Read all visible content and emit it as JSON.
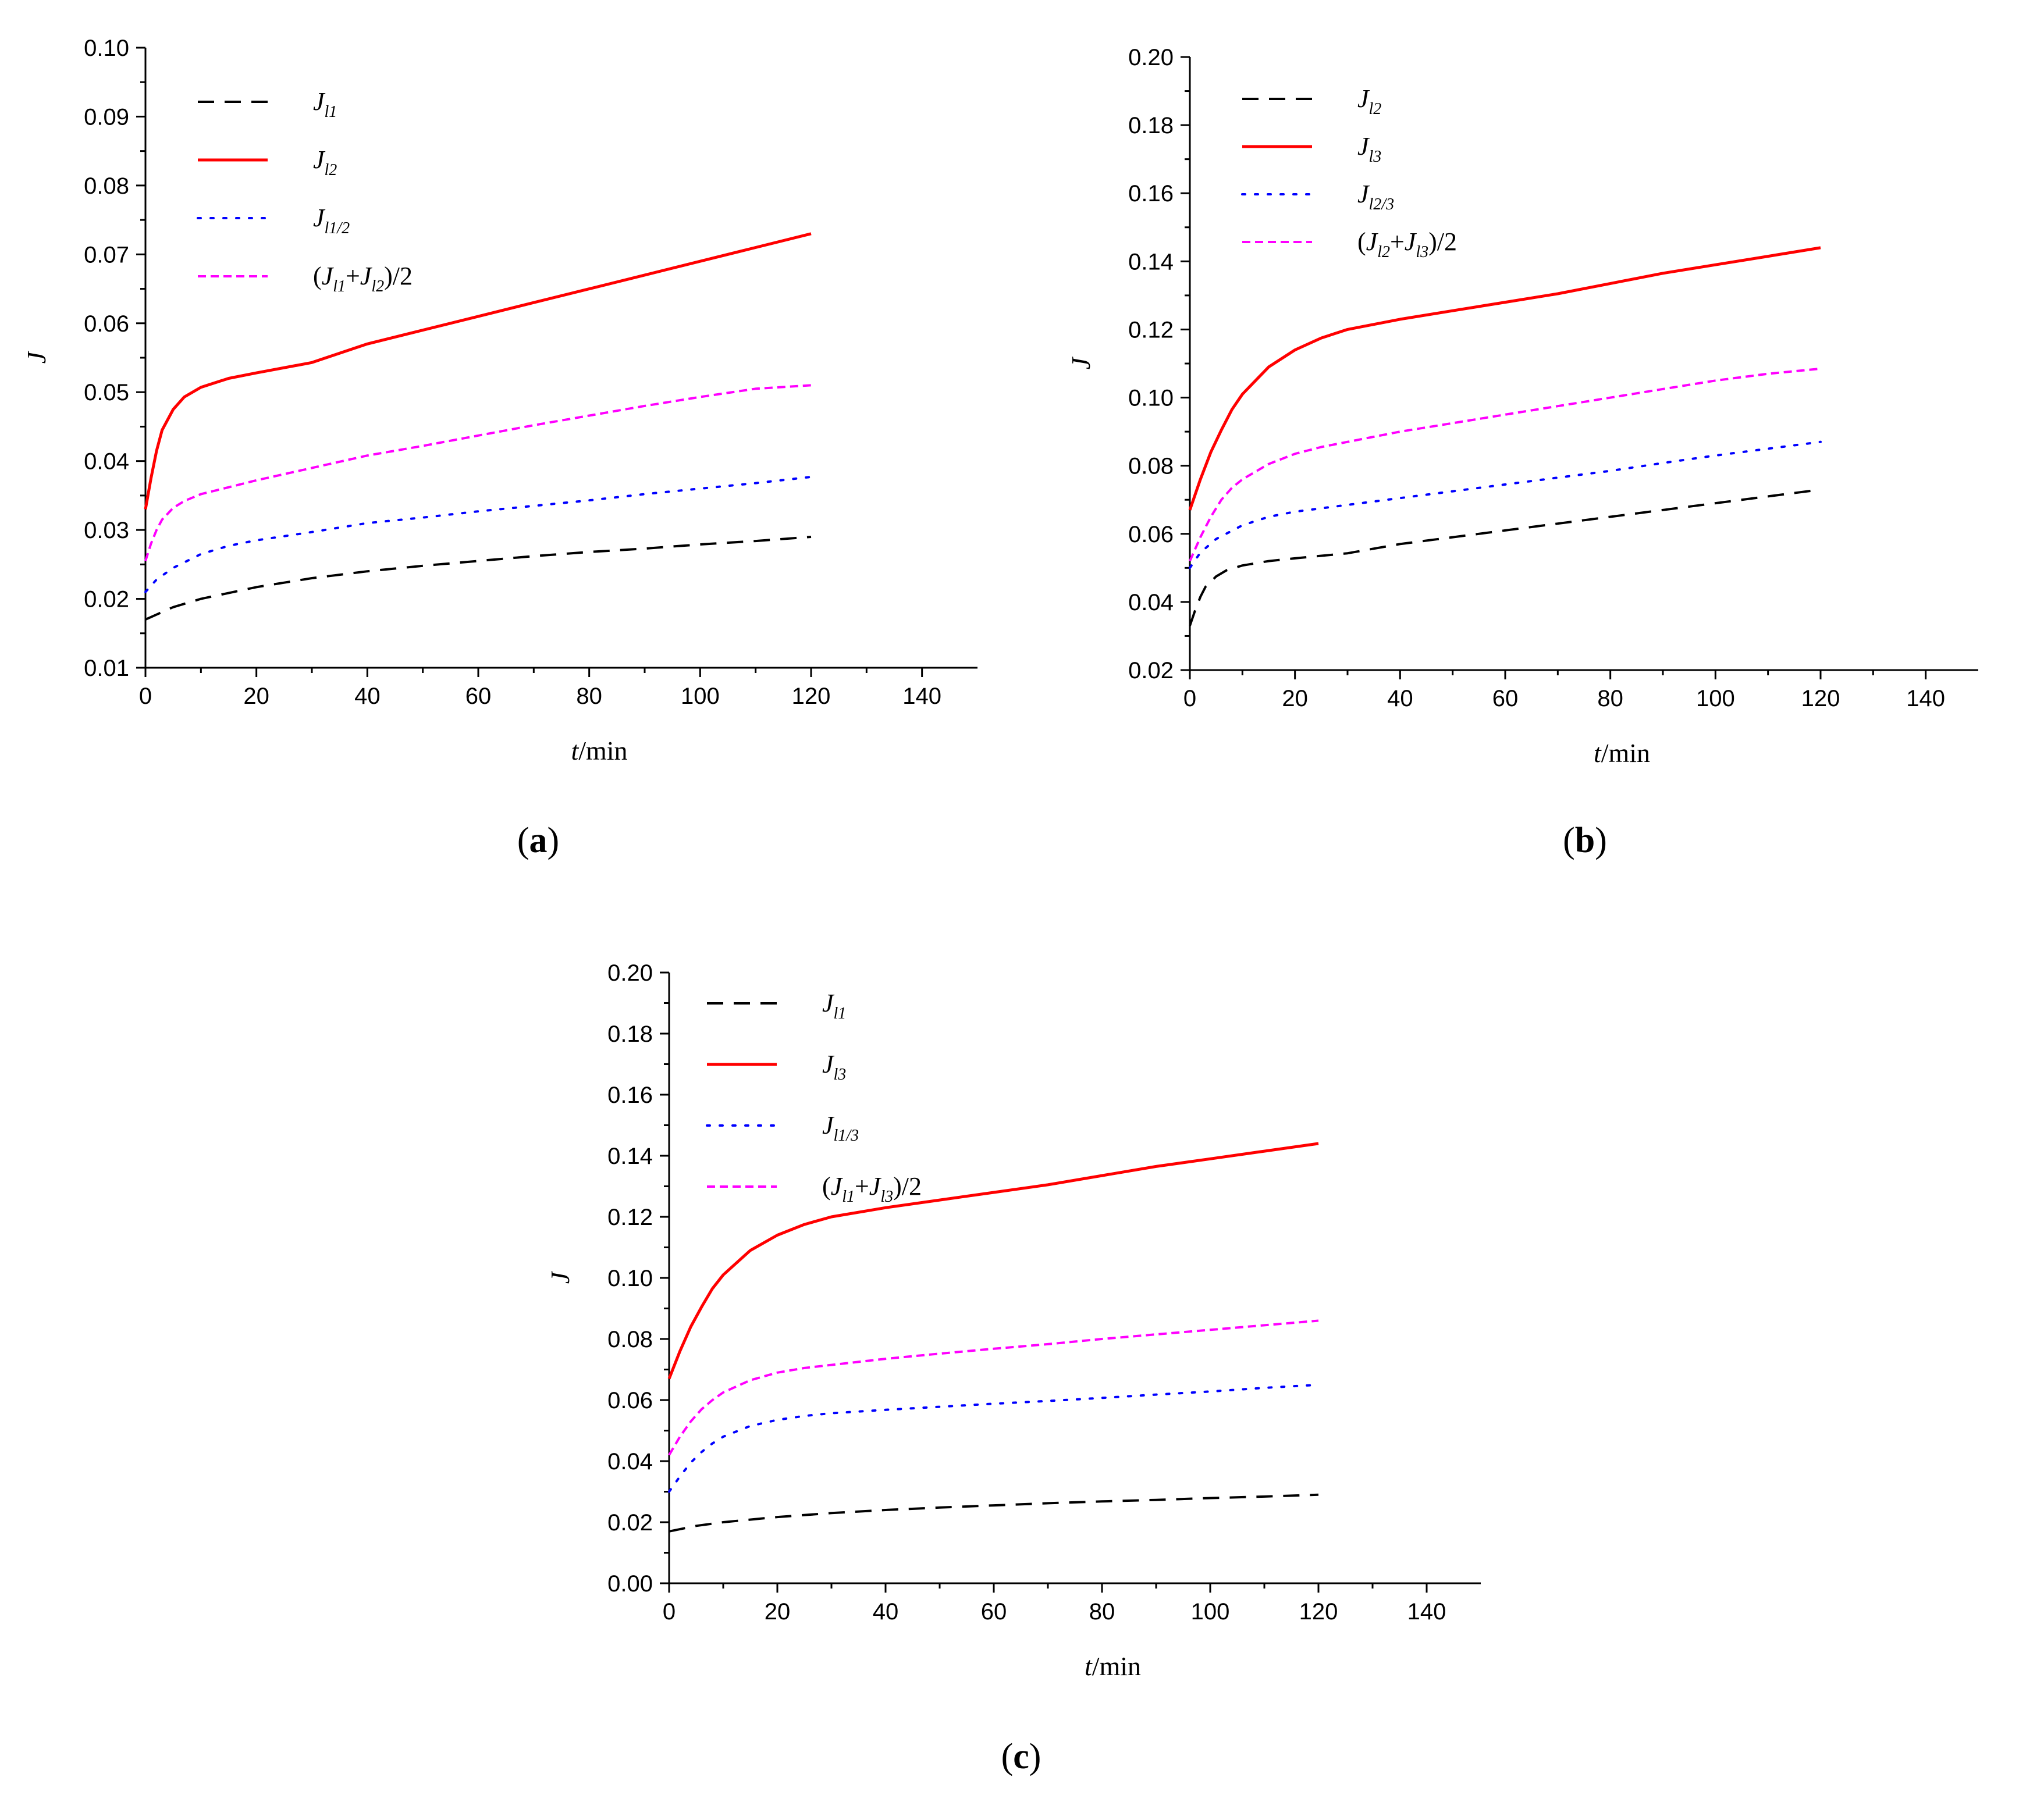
{
  "chart_data": [
    {
      "type": "line",
      "panel": "a",
      "panel_label": "(a)",
      "xlabel": "t/min",
      "xlabel_var": "t",
      "xlabel_unit": "/min",
      "ylabel": "J",
      "xlim": [
        0,
        150
      ],
      "ylim": [
        0.01,
        0.1
      ],
      "xticks": [
        0,
        20,
        40,
        60,
        80,
        100,
        120,
        140
      ],
      "xtick_labels": [
        "0",
        "20",
        "40",
        "60",
        "80",
        "100",
        "120",
        "140"
      ],
      "yticks": [
        0.01,
        0.02,
        0.03,
        0.04,
        0.05,
        0.06,
        0.07,
        0.08,
        0.09,
        0.1
      ],
      "ytick_labels": [
        "0.01",
        "0.02",
        "0.03",
        "0.04",
        "0.05",
        "0.06",
        "0.07",
        "0.08",
        "0.09",
        "0.10"
      ],
      "series": [
        {
          "name": "J_l1",
          "legend": [
            {
              "t": "J",
              "i": true
            },
            {
              "t": "l1",
              "sub": true,
              "i": true
            }
          ],
          "color": "#000000",
          "style": "dash",
          "x": [
            0,
            5,
            10,
            20,
            30,
            40,
            50,
            60,
            70,
            80,
            90,
            100,
            110,
            120
          ],
          "y": [
            0.017,
            0.0188,
            0.02,
            0.0217,
            0.023,
            0.024,
            0.0248,
            0.0255,
            0.0262,
            0.0268,
            0.0273,
            0.0279,
            0.0284,
            0.029
          ]
        },
        {
          "name": "J_l2",
          "legend": [
            {
              "t": "J",
              "i": true
            },
            {
              "t": "l2",
              "sub": true,
              "i": true
            }
          ],
          "color": "#ff0000",
          "style": "solid",
          "x": [
            0,
            1,
            2,
            3,
            5,
            7,
            10,
            15,
            20,
            30,
            40,
            50,
            60,
            70,
            80,
            90,
            100,
            110,
            120
          ],
          "y": [
            0.033,
            0.0375,
            0.0415,
            0.0445,
            0.0475,
            0.0493,
            0.0507,
            0.052,
            0.0528,
            0.0543,
            0.057,
            0.059,
            0.061,
            0.063,
            0.065,
            0.067,
            0.069,
            0.071,
            0.073
          ]
        },
        {
          "name": "J_l1/2",
          "legend": [
            {
              "t": "J",
              "i": true
            },
            {
              "t": "l1/2",
              "sub": true,
              "i": true
            }
          ],
          "color": "#0000ff",
          "style": "dot",
          "x": [
            0,
            2,
            5,
            10,
            15,
            20,
            30,
            40,
            50,
            60,
            70,
            80,
            90,
            100,
            110,
            120
          ],
          "y": [
            0.021,
            0.0228,
            0.0245,
            0.0265,
            0.0277,
            0.0285,
            0.0297,
            0.031,
            0.0318,
            0.0327,
            0.0335,
            0.0343,
            0.0352,
            0.036,
            0.0368,
            0.0377
          ]
        },
        {
          "name": "(J_l1+J_l2)/2",
          "legend": [
            {
              "t": "("
            },
            {
              "t": "J",
              "i": true
            },
            {
              "t": "l1",
              "sub": true,
              "i": true
            },
            {
              "t": "+"
            },
            {
              "t": "J",
              "i": true
            },
            {
              "t": "l2",
              "sub": true,
              "i": true
            },
            {
              "t": ")/2"
            }
          ],
          "color": "#ff00ff",
          "style": "dash-small",
          "x": [
            0,
            1,
            2,
            3,
            5,
            7,
            10,
            15,
            20,
            30,
            40,
            50,
            60,
            70,
            80,
            90,
            100,
            110,
            120
          ],
          "y": [
            0.0255,
            0.028,
            0.03,
            0.0315,
            0.0332,
            0.0342,
            0.0352,
            0.0362,
            0.0372,
            0.039,
            0.0408,
            0.0422,
            0.0437,
            0.0452,
            0.0466,
            0.048,
            0.0493,
            0.0505,
            0.051
          ]
        }
      ]
    },
    {
      "type": "line",
      "panel": "b",
      "panel_label": "(b)",
      "xlabel": "t/min",
      "xlabel_var": "t",
      "xlabel_unit": "/min",
      "ylabel": "J",
      "xlim": [
        0,
        150
      ],
      "ylim": [
        0.02,
        0.2
      ],
      "xticks": [
        0,
        20,
        40,
        60,
        80,
        100,
        120,
        140
      ],
      "xtick_labels": [
        "0",
        "20",
        "40",
        "60",
        "80",
        "100",
        "120",
        "140"
      ],
      "yticks": [
        0.02,
        0.04,
        0.06,
        0.08,
        0.1,
        0.12,
        0.14,
        0.16,
        0.18,
        0.2
      ],
      "ytick_labels": [
        "0.02",
        "0.04",
        "0.06",
        "0.08",
        "0.10",
        "0.12",
        "0.14",
        "0.16",
        "0.18",
        "0.20"
      ],
      "series": [
        {
          "name": "J_l2",
          "legend": [
            {
              "t": "J",
              "i": true
            },
            {
              "t": "l2",
              "sub": true,
              "i": true
            }
          ],
          "color": "#000000",
          "style": "dash",
          "x": [
            0,
            1,
            2,
            3,
            5,
            7,
            10,
            15,
            20,
            30,
            40,
            50,
            60,
            70,
            80,
            90,
            100,
            110,
            120
          ],
          "y": [
            0.033,
            0.0375,
            0.0415,
            0.0445,
            0.0475,
            0.0493,
            0.0507,
            0.052,
            0.0528,
            0.0543,
            0.057,
            0.059,
            0.061,
            0.063,
            0.065,
            0.067,
            0.069,
            0.071,
            0.073
          ]
        },
        {
          "name": "J_l3",
          "legend": [
            {
              "t": "J",
              "i": true
            },
            {
              "t": "l3",
              "sub": true,
              "i": true
            }
          ],
          "color": "#ff0000",
          "style": "solid",
          "x": [
            0,
            2,
            4,
            6,
            8,
            10,
            15,
            20,
            25,
            30,
            40,
            50,
            60,
            70,
            80,
            90,
            100,
            110,
            120
          ],
          "y": [
            0.067,
            0.076,
            0.084,
            0.0905,
            0.0965,
            0.101,
            0.109,
            0.114,
            0.1175,
            0.12,
            0.123,
            0.1255,
            0.128,
            0.1305,
            0.1335,
            0.1365,
            0.139,
            0.1415,
            0.144
          ]
        },
        {
          "name": "J_l2/3",
          "legend": [
            {
              "t": "J",
              "i": true
            },
            {
              "t": "l2/3",
              "sub": true,
              "i": true
            }
          ],
          "color": "#0000ff",
          "style": "dot",
          "x": [
            0,
            2,
            5,
            10,
            15,
            20,
            30,
            40,
            50,
            60,
            70,
            80,
            90,
            100,
            110,
            120
          ],
          "y": [
            0.05,
            0.0545,
            0.0585,
            0.0625,
            0.065,
            0.0665,
            0.0685,
            0.0705,
            0.0725,
            0.0745,
            0.0765,
            0.0785,
            0.0808,
            0.083,
            0.085,
            0.087
          ]
        },
        {
          "name": "(J_l2+J_l3)/2",
          "legend": [
            {
              "t": "("
            },
            {
              "t": "J",
              "i": true
            },
            {
              "t": "l2",
              "sub": true,
              "i": true
            },
            {
              "t": "+"
            },
            {
              "t": "J",
              "i": true
            },
            {
              "t": "l3",
              "sub": true,
              "i": true
            },
            {
              "t": ")/2"
            }
          ],
          "color": "#ff00ff",
          "style": "dash-small",
          "x": [
            0,
            2,
            4,
            6,
            8,
            10,
            15,
            20,
            25,
            30,
            40,
            50,
            60,
            70,
            80,
            90,
            100,
            110,
            120
          ],
          "y": [
            0.052,
            0.059,
            0.065,
            0.07,
            0.0735,
            0.076,
            0.0805,
            0.0835,
            0.0855,
            0.087,
            0.09,
            0.0925,
            0.095,
            0.0975,
            0.1,
            0.1025,
            0.105,
            0.107,
            0.1085
          ]
        }
      ]
    },
    {
      "type": "line",
      "panel": "c",
      "panel_label": "(c)",
      "xlabel": "t/min",
      "xlabel_var": "t",
      "xlabel_unit": "/min",
      "ylabel": "J",
      "xlim": [
        0,
        150
      ],
      "ylim": [
        0.0,
        0.2
      ],
      "xticks": [
        0,
        20,
        40,
        60,
        80,
        100,
        120,
        140
      ],
      "xtick_labels": [
        "0",
        "20",
        "40",
        "60",
        "80",
        "100",
        "120",
        "140"
      ],
      "yticks": [
        0.0,
        0.02,
        0.04,
        0.06,
        0.08,
        0.1,
        0.12,
        0.14,
        0.16,
        0.18,
        0.2
      ],
      "ytick_labels": [
        "0.00",
        "0.02",
        "0.04",
        "0.06",
        "0.08",
        "0.10",
        "0.12",
        "0.14",
        "0.16",
        "0.18",
        "0.20"
      ],
      "series": [
        {
          "name": "J_l1",
          "legend": [
            {
              "t": "J",
              "i": true
            },
            {
              "t": "l1",
              "sub": true,
              "i": true
            }
          ],
          "color": "#000000",
          "style": "dash",
          "x": [
            0,
            5,
            10,
            20,
            30,
            40,
            50,
            60,
            70,
            80,
            90,
            100,
            110,
            120
          ],
          "y": [
            0.017,
            0.0188,
            0.02,
            0.0217,
            0.023,
            0.024,
            0.0248,
            0.0255,
            0.0262,
            0.0268,
            0.0273,
            0.0279,
            0.0284,
            0.029
          ]
        },
        {
          "name": "J_l3",
          "legend": [
            {
              "t": "J",
              "i": true
            },
            {
              "t": "l3",
              "sub": true,
              "i": true
            }
          ],
          "color": "#ff0000",
          "style": "solid",
          "x": [
            0,
            2,
            4,
            6,
            8,
            10,
            15,
            20,
            25,
            30,
            40,
            50,
            60,
            70,
            80,
            90,
            100,
            110,
            120
          ],
          "y": [
            0.067,
            0.076,
            0.084,
            0.0905,
            0.0965,
            0.101,
            0.109,
            0.114,
            0.1175,
            0.12,
            0.123,
            0.1255,
            0.128,
            0.1305,
            0.1335,
            0.1365,
            0.139,
            0.1415,
            0.144
          ]
        },
        {
          "name": "J_l1/3",
          "legend": [
            {
              "t": "J",
              "i": true
            },
            {
              "t": "l1/3",
              "sub": true,
              "i": true
            }
          ],
          "color": "#0000ff",
          "style": "dot",
          "x": [
            0,
            2,
            4,
            6,
            8,
            10,
            15,
            20,
            25,
            30,
            40,
            50,
            60,
            70,
            80,
            90,
            100,
            110,
            120
          ],
          "y": [
            0.03,
            0.035,
            0.0395,
            0.043,
            0.0458,
            0.048,
            0.0515,
            0.0535,
            0.0548,
            0.0557,
            0.0568,
            0.0578,
            0.0588,
            0.0597,
            0.0607,
            0.0618,
            0.0628,
            0.064,
            0.065
          ]
        },
        {
          "name": "(J_l1+J_l3)/2",
          "legend": [
            {
              "t": "("
            },
            {
              "t": "J",
              "i": true
            },
            {
              "t": "l1",
              "sub": true,
              "i": true
            },
            {
              "t": "+"
            },
            {
              "t": "J",
              "i": true
            },
            {
              "t": "l3",
              "sub": true,
              "i": true
            },
            {
              "t": ")/2"
            }
          ],
          "color": "#ff00ff",
          "style": "dash-small",
          "x": [
            0,
            2,
            4,
            6,
            8,
            10,
            15,
            20,
            25,
            30,
            40,
            50,
            60,
            70,
            80,
            90,
            100,
            110,
            120
          ],
          "y": [
            0.042,
            0.048,
            0.053,
            0.057,
            0.06,
            0.0625,
            0.0665,
            0.069,
            0.0705,
            0.0715,
            0.0735,
            0.0752,
            0.0768,
            0.0783,
            0.08,
            0.0815,
            0.083,
            0.0845,
            0.086
          ]
        }
      ]
    }
  ]
}
